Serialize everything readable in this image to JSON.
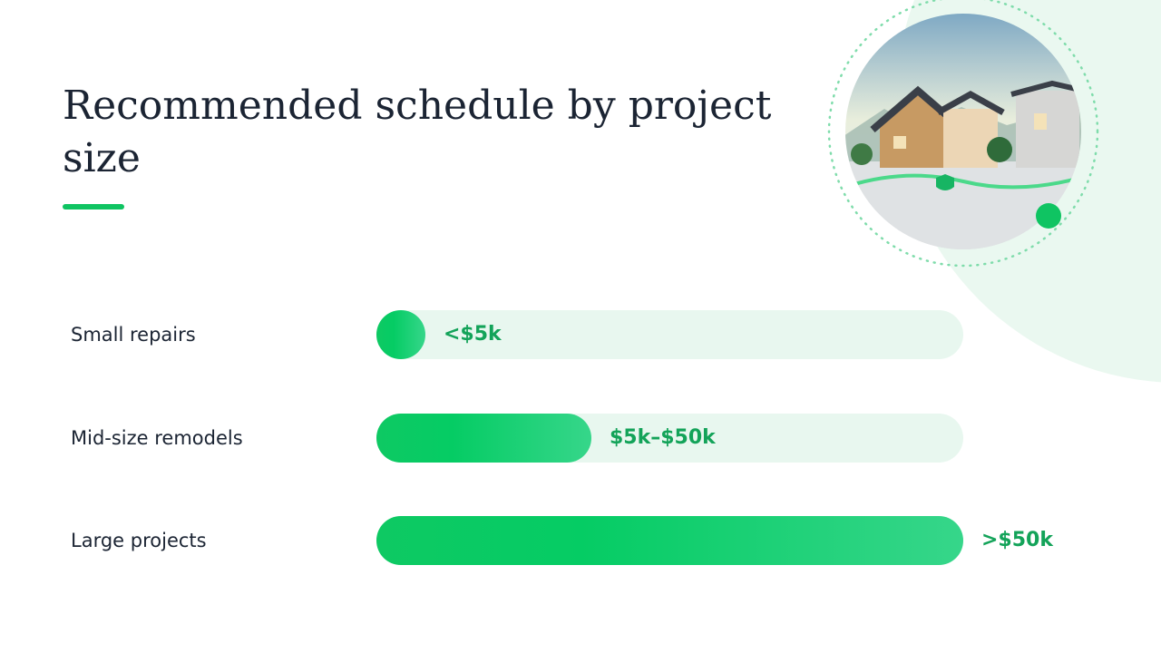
{
  "title": "Recommended schedule by project size",
  "rows": [
    {
      "label": "Small repairs",
      "value": "<$5k"
    },
    {
      "label": "Mid-size remodels",
      "value": "$5k–$50k"
    },
    {
      "label": "Large projects",
      "value": ">$50k"
    }
  ]
}
